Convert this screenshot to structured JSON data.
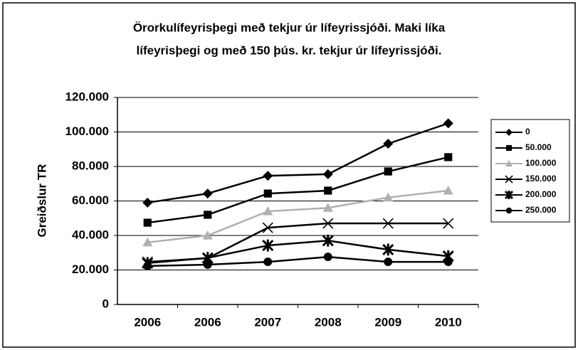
{
  "chart_data": {
    "type": "line",
    "title": [
      "Örorkulífeyrisþegi með tekjur úr lífeyrissjóði. Maki líka",
      "lífeyrisþegi og með 150 þús. kr. tekjur úr lífeyrissjóði."
    ],
    "y_label": "Greiðslur TR",
    "categories": [
      "2006",
      "2006",
      "2007",
      "2008",
      "2009",
      "2010"
    ],
    "series": [
      {
        "name": "0",
        "color": "#000000",
        "marker": "diamond",
        "values": [
          59000,
          64300,
          74600,
          75500,
          93200,
          105000
        ]
      },
      {
        "name": "50.000",
        "color": "#000000",
        "marker": "square",
        "values": [
          47400,
          52000,
          64300,
          66000,
          77100,
          85400
        ]
      },
      {
        "name": "100.000",
        "color": "#b0b0b0",
        "marker": "triangle",
        "values": [
          36000,
          40000,
          54000,
          56000,
          62000,
          66000
        ]
      },
      {
        "name": "150.000",
        "color": "#000000",
        "marker": "x",
        "values": [
          24700,
          26800,
          44500,
          47000,
          47000,
          47000
        ]
      },
      {
        "name": "200.000",
        "color": "#000000",
        "marker": "star",
        "values": [
          24000,
          27000,
          34200,
          37000,
          31800,
          28000
        ]
      },
      {
        "name": "250.000",
        "color": "#000000",
        "marker": "circle",
        "values": [
          22300,
          23100,
          24700,
          27600,
          24700,
          24700
        ]
      }
    ],
    "ylim": [
      0,
      120000
    ],
    "yticks": [
      0,
      {
        "value": 20000,
        "label": "20.000"
      },
      {
        "value": 40000,
        "label": "40.000"
      },
      {
        "value": 60000,
        "label": "60.000"
      },
      {
        "value": 80000,
        "label": "80.000"
      },
      {
        "value": 100000,
        "label": "100.000"
      },
      {
        "value": 120000,
        "label": "120.000"
      }
    ],
    "grid": true,
    "legend": "right"
  }
}
